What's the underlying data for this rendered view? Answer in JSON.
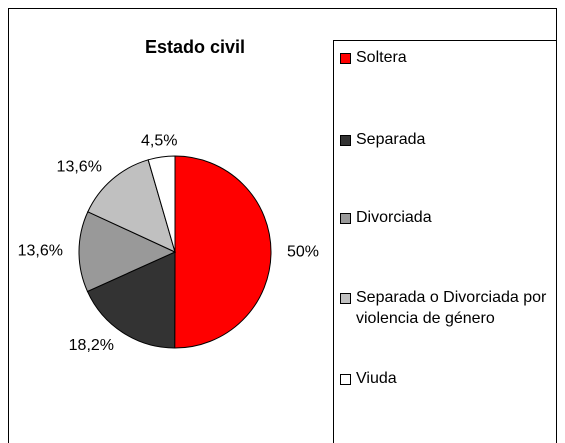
{
  "chart_data": {
    "type": "pie",
    "title": "Estado civil",
    "categories": [
      "Soltera",
      "Separada",
      "Divorciada",
      "Separada o Divorciada por violencia de género",
      "Viuda"
    ],
    "values": [
      50,
      18.2,
      13.6,
      13.6,
      4.5
    ],
    "value_labels": [
      "50%",
      "18,2%",
      "13,6%",
      "13,6%",
      "4,5%"
    ],
    "colors": [
      "#ff0000",
      "#333333",
      "#999999",
      "#c0c0c0",
      "#ffffff"
    ]
  }
}
